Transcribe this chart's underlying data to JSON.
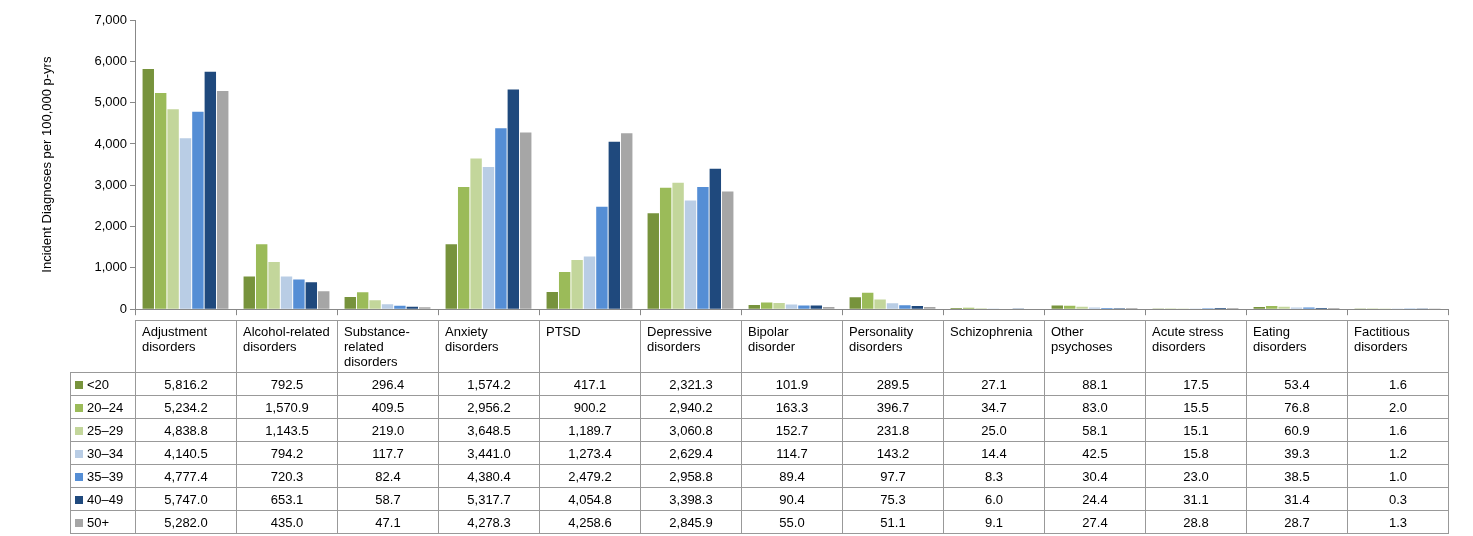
{
  "chart_data": {
    "type": "bar",
    "ylabel": "Incident Diagnoses per 100,000 p-yrs",
    "categories": [
      "Adjustment disorders",
      "Alcohol-related disorders",
      "Substance-related disorders",
      "Anxiety disorders",
      "PTSD",
      "Depressive disorders",
      "Bipolar disorder",
      "Personality disorders",
      "Schizophrenia",
      "Other psychoses",
      "Acute stress disorders",
      "Eating disorders",
      "Factitious disorders"
    ],
    "series": [
      {
        "name": "<20",
        "color": "#77933c",
        "values": [
          5816.2,
          792.5,
          296.4,
          1574.2,
          417.1,
          2321.3,
          101.9,
          289.5,
          27.1,
          88.1,
          17.5,
          53.4,
          1.6
        ],
        "value_labels": [
          "5,816.2",
          "792.5",
          "296.4",
          "1,574.2",
          "417.1",
          "2,321.3",
          "101.9",
          "289.5",
          "27.1",
          "88.1",
          "17.5",
          "53.4",
          "1.6"
        ]
      },
      {
        "name": "20–24",
        "color": "#9bbb59",
        "values": [
          5234.2,
          1570.9,
          409.5,
          2956.2,
          900.2,
          2940.2,
          163.3,
          396.7,
          34.7,
          83.0,
          15.5,
          76.8,
          2.0
        ],
        "value_labels": [
          "5,234.2",
          "1,570.9",
          "409.5",
          "2,956.2",
          "900.2",
          "2,940.2",
          "163.3",
          "396.7",
          "34.7",
          "83.0",
          "15.5",
          "76.8",
          "2.0"
        ]
      },
      {
        "name": "25–29",
        "color": "#c3d69b",
        "values": [
          4838.8,
          1143.5,
          219.0,
          3648.5,
          1189.7,
          3060.8,
          152.7,
          231.8,
          25.0,
          58.1,
          15.1,
          60.9,
          1.6
        ],
        "value_labels": [
          "4,838.8",
          "1,143.5",
          "219.0",
          "3,648.5",
          "1,189.7",
          "3,060.8",
          "152.7",
          "231.8",
          "25.0",
          "58.1",
          "15.1",
          "60.9",
          "1.6"
        ]
      },
      {
        "name": "30–34",
        "color": "#b9cde5",
        "values": [
          4140.5,
          794.2,
          117.7,
          3441.0,
          1273.4,
          2629.4,
          114.7,
          143.2,
          14.4,
          42.5,
          15.8,
          39.3,
          1.2
        ],
        "value_labels": [
          "4,140.5",
          "794.2",
          "117.7",
          "3,441.0",
          "1,273.4",
          "2,629.4",
          "114.7",
          "143.2",
          "14.4",
          "42.5",
          "15.8",
          "39.3",
          "1.2"
        ]
      },
      {
        "name": "35–39",
        "color": "#558ed5",
        "values": [
          4777.4,
          720.3,
          82.4,
          4380.4,
          2479.2,
          2958.8,
          89.4,
          97.7,
          8.3,
          30.4,
          23.0,
          38.5,
          1.0
        ],
        "value_labels": [
          "4,777.4",
          "720.3",
          "82.4",
          "4,380.4",
          "2,479.2",
          "2,958.8",
          "89.4",
          "97.7",
          "8.3",
          "30.4",
          "23.0",
          "38.5",
          "1.0"
        ]
      },
      {
        "name": "40–49",
        "color": "#1f497d",
        "values": [
          5747.0,
          653.1,
          58.7,
          5317.7,
          4054.8,
          3398.3,
          90.4,
          75.3,
          6.0,
          24.4,
          31.1,
          31.4,
          0.3
        ],
        "value_labels": [
          "5,747.0",
          "653.1",
          "58.7",
          "5,317.7",
          "4,054.8",
          "3,398.3",
          "90.4",
          "75.3",
          "6.0",
          "24.4",
          "31.1",
          "31.4",
          "0.3"
        ]
      },
      {
        "name": "50+",
        "color": "#a6a6a6",
        "values": [
          5282.0,
          435.0,
          47.1,
          4278.3,
          4258.6,
          2845.9,
          55.0,
          51.1,
          9.1,
          27.4,
          28.8,
          28.7,
          1.3
        ],
        "value_labels": [
          "5,282.0",
          "435.0",
          "47.1",
          "4,278.3",
          "4,258.6",
          "2,845.9",
          "55.0",
          "51.1",
          "9.1",
          "27.4",
          "28.8",
          "28.7",
          "1.3"
        ]
      }
    ],
    "ylim": [
      0,
      7000
    ],
    "yticks": [
      0,
      {
        "value": 1000,
        "label": "1,000"
      },
      {
        "value": 2000,
        "label": "2,000"
      },
      {
        "value": 3000,
        "label": "3,000"
      },
      {
        "value": 4000,
        "label": "4,000"
      },
      {
        "value": 5000,
        "label": "5,000"
      },
      {
        "value": 6000,
        "label": "6,000"
      },
      {
        "value": 7000,
        "label": "7,000"
      }
    ],
    "grid": false,
    "legend": "bottom"
  }
}
